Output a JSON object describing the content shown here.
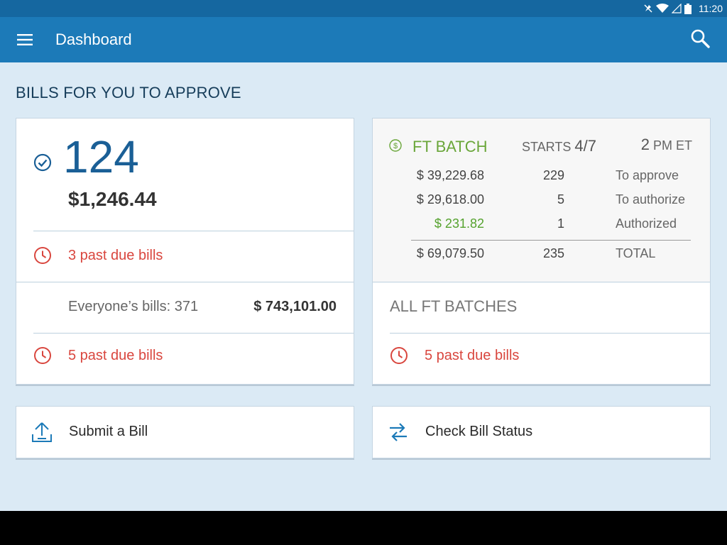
{
  "status_bar": {
    "time": "11:20"
  },
  "app_bar": {
    "title": "Dashboard",
    "menu_icon": "hamburger-menu-icon",
    "search_icon": "search-icon"
  },
  "section_title": "BILLS FOR YOU TO APPROVE",
  "my_bills": {
    "count": "124",
    "amount": "$1,246.44",
    "past_due": "3 past due bills",
    "everyone_label": "Everyone’s bills: 371",
    "everyone_amount": "$ 743,101.00",
    "everyone_past_due": "5 past due bills"
  },
  "batch": {
    "name": "FT BATCH",
    "starts_label": "STARTS",
    "starts_date": "4/7",
    "time_num": "2",
    "time_suffix": "PM ET",
    "rows": [
      {
        "amount": "$ 39,229.68",
        "count": "229",
        "label": "To approve"
      },
      {
        "amount": "$ 29,618.00",
        "count": "5",
        "label": "To authorize"
      },
      {
        "amount": "$ 231.82",
        "count": "1",
        "label": "Authorized"
      }
    ],
    "total": {
      "amount": "$ 69,079.50",
      "count": "235",
      "label": "TOTAL"
    },
    "all_batches": "ALL FT BATCHES",
    "past_due": "5 past due bills"
  },
  "actions": {
    "submit": "Submit a Bill",
    "check_status": "Check Bill Status"
  },
  "colors": {
    "app_bar": "#1c7ab8",
    "status_bar": "#1567a0",
    "background": "#dbeaf5",
    "past_due_red": "#d9463e",
    "batch_green": "#6aa63a",
    "count_blue": "#1a5f96"
  }
}
